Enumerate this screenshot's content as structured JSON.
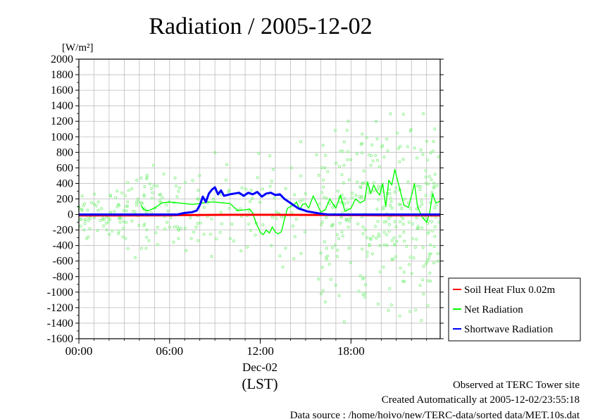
{
  "chart_data": {
    "type": "line",
    "title": "Radiation / 2005-12-02",
    "ylabel": "[W/m²]",
    "ylim": [
      -1600,
      2000
    ],
    "yticks": [
      2000,
      1800,
      1600,
      1400,
      1200,
      1000,
      800,
      600,
      400,
      200,
      0,
      -200,
      -400,
      -600,
      -800,
      -1000,
      -1200,
      -1400,
      -1600
    ],
    "xlim": [
      0,
      23.9
    ],
    "xticks": [
      {
        "hour": 0,
        "label": "00:00"
      },
      {
        "hour": 6,
        "label": "06:00"
      },
      {
        "hour": 12,
        "label": "12:00"
      },
      {
        "hour": 18,
        "label": "18:00"
      }
    ],
    "xdate": "Dec-02",
    "xlabel": "(LST)",
    "grid": true,
    "legend_position": "right",
    "series": [
      {
        "name": "Soil Heat Flux 0.02m",
        "color": "#ff0000",
        "x": [
          0,
          3,
          6,
          8,
          10,
          12,
          14,
          16,
          18,
          20,
          22,
          23.9
        ],
        "y": [
          -12,
          -12,
          -10,
          -6,
          -4,
          -4,
          -5,
          -7,
          -9,
          -10,
          -11,
          -12
        ]
      },
      {
        "name": "Net Radiation",
        "color": "#00ff00",
        "x": [
          4.1,
          4.3,
          4.6,
          5.0,
          5.5,
          6.0,
          7.0,
          7.5,
          8.0,
          8.5,
          9.0,
          9.5,
          10.0,
          10.5,
          11.0,
          11.3,
          11.5,
          11.7,
          12.0,
          12.2,
          12.4,
          12.6,
          12.8,
          13.0,
          13.2,
          13.4,
          13.6,
          13.8,
          14.0,
          14.2,
          14.4,
          14.6,
          14.8,
          15.0,
          15.2,
          15.5,
          15.8,
          16.0,
          16.3,
          16.6,
          17.0,
          17.3,
          17.6,
          18.0,
          18.3,
          18.6,
          18.9,
          19.1,
          19.3,
          19.5,
          19.7,
          19.9,
          20.1,
          20.3,
          20.5,
          20.7,
          20.9,
          21.2,
          21.5,
          21.8,
          22.0,
          22.2,
          22.4,
          22.7,
          23.0,
          23.2,
          23.4,
          23.6,
          23.9
        ],
        "y": [
          120,
          60,
          50,
          80,
          150,
          160,
          140,
          130,
          140,
          160,
          160,
          150,
          140,
          50,
          60,
          70,
          20,
          -100,
          -230,
          -260,
          -200,
          -240,
          -160,
          -230,
          -250,
          -220,
          -60,
          80,
          100,
          120,
          160,
          60,
          130,
          140,
          80,
          240,
          120,
          30,
          60,
          200,
          80,
          250,
          40,
          80,
          200,
          150,
          180,
          420,
          270,
          380,
          300,
          250,
          400,
          100,
          440,
          380,
          580,
          350,
          120,
          90,
          240,
          400,
          100,
          -30,
          -100,
          20,
          270,
          150,
          170
        ]
      },
      {
        "name": "Shortwave Radiation",
        "color": "#0000ff",
        "x": [
          0,
          6.5,
          7.0,
          7.5,
          7.8,
          8.0,
          8.2,
          8.4,
          8.6,
          8.8,
          9.0,
          9.2,
          9.4,
          9.6,
          9.8,
          10.0,
          10.3,
          10.6,
          10.9,
          11.2,
          11.5,
          11.8,
          12.1,
          12.4,
          12.7,
          13.0,
          13.3,
          13.6,
          13.9,
          14.2,
          14.5,
          14.8,
          15.1,
          15.4,
          15.7,
          16.0,
          16.5,
          23.9
        ],
        "y": [
          0,
          0,
          20,
          30,
          50,
          120,
          230,
          160,
          270,
          320,
          350,
          260,
          310,
          240,
          250,
          260,
          270,
          280,
          240,
          280,
          260,
          290,
          230,
          270,
          280,
          250,
          260,
          200,
          160,
          120,
          80,
          60,
          40,
          30,
          20,
          10,
          0,
          0
        ]
      }
    ]
  },
  "footer": {
    "site": "Observed at TERC Tower site",
    "created": "Created Automatically at 2005-12-02/23:55:18",
    "source": "Data source : /home/hoivo/new/TERC-data/sorted  data/MET.10s.dat"
  }
}
